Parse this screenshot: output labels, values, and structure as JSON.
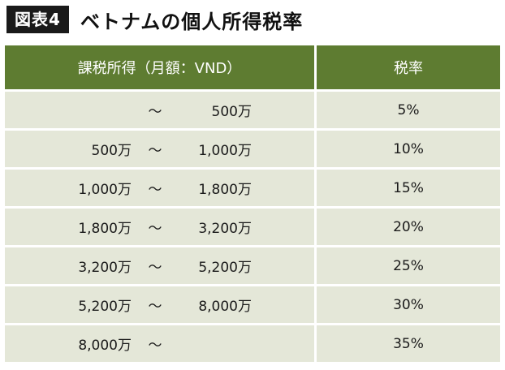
{
  "header": {
    "label": "図表4",
    "title": "ベトナムの個人所得税率"
  },
  "table": {
    "columns": [
      "課税所得（月額：VND）",
      "税率"
    ],
    "rows": [
      {
        "from": "",
        "sep": "〜",
        "to": "500万",
        "rate": "5%"
      },
      {
        "from": "500万",
        "sep": "〜",
        "to": "1,000万",
        "rate": "10%"
      },
      {
        "from": "1,000万",
        "sep": "〜",
        "to": "1,800万",
        "rate": "15%"
      },
      {
        "from": "1,800万",
        "sep": "〜",
        "to": "3,200万",
        "rate": "20%"
      },
      {
        "from": "3,200万",
        "sep": "〜",
        "to": "5,200万",
        "rate": "25%"
      },
      {
        "from": "5,200万",
        "sep": "〜",
        "to": "8,000万",
        "rate": "30%"
      },
      {
        "from": "8,000万",
        "sep": "〜",
        "to": "",
        "rate": "35%"
      }
    ]
  },
  "colors": {
    "header_bg": "#5e7c31",
    "row_bg": "#e4e7d8",
    "label_bg": "#1a1a1a"
  }
}
